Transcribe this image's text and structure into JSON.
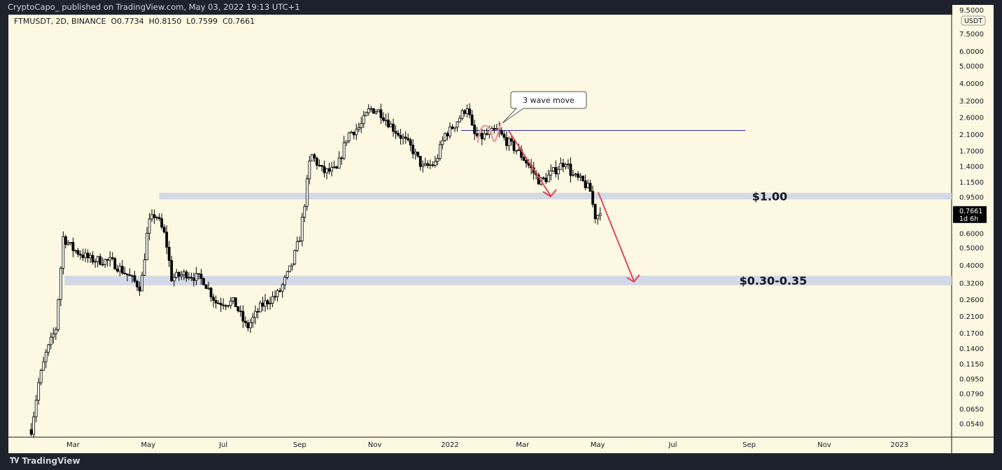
{
  "header": {
    "published": "CryptoCapo_ published on TradingView.com, May 03, 2022 19:13 UTC+1",
    "symbol_line": "FTMUSDT, 2D, BINANCE",
    "open": "O0.7734",
    "high": "H0.8150",
    "low": "L0.7599",
    "close": "C0.7661"
  },
  "footer": {
    "brand": "TradingView",
    "logo_icon": "tradingview-logo-icon"
  },
  "colors": {
    "background": "#fdf8e1",
    "frame": "#1e222d",
    "zone": "#d3d9e6",
    "arrow": "#e0475b",
    "level_line": "#2a2aa0",
    "candle": "#000000"
  },
  "chart_data": {
    "type": "candlestick",
    "symbol": "FTMUSDT",
    "interval": "2D",
    "exchange": "BINANCE",
    "y_scale": "log",
    "y_unit": "USDT",
    "ylim": [
      0.05,
      9.5
    ],
    "y_ticks": [
      "9.5000",
      "7.5000",
      "6.0000",
      "5.0000",
      "4.0000",
      "3.2000",
      "2.6000",
      "2.1000",
      "1.7000",
      "1.4000",
      "1.1500",
      "0.9500",
      "0.6000",
      "0.5000",
      "0.4000",
      "0.3200",
      "0.2600",
      "0.2100",
      "0.1700",
      "0.1400",
      "0.1150",
      "0.0950",
      "0.0790",
      "0.0650",
      "0.0540"
    ],
    "x_ticks": [
      {
        "label": "Mar",
        "date": "2021-03-01"
      },
      {
        "label": "May",
        "date": "2021-05-01"
      },
      {
        "label": "Jul",
        "date": "2021-07-01"
      },
      {
        "label": "Sep",
        "date": "2021-09-01"
      },
      {
        "label": "Nov",
        "date": "2021-11-01"
      },
      {
        "label": "2022",
        "date": "2022-01-01"
      },
      {
        "label": "Mar",
        "date": "2022-03-01"
      },
      {
        "label": "May",
        "date": "2022-05-01"
      },
      {
        "label": "Jul",
        "date": "2022-07-01"
      },
      {
        "label": "Sep",
        "date": "2022-09-01"
      },
      {
        "label": "Nov",
        "date": "2022-11-01"
      },
      {
        "label": "2023",
        "date": "2023-01-01"
      }
    ],
    "last_price": {
      "value": "0.7661",
      "countdown": "1d 6h"
    },
    "approx_close_path": [
      [
        "2021-01-26",
        0.05
      ],
      [
        "2021-02-01",
        0.09
      ],
      [
        "2021-02-07",
        0.13
      ],
      [
        "2021-02-15",
        0.18
      ],
      [
        "2021-02-21",
        0.57
      ],
      [
        "2021-03-01",
        0.49
      ],
      [
        "2021-03-15",
        0.43
      ],
      [
        "2021-04-01",
        0.42
      ],
      [
        "2021-04-15",
        0.35
      ],
      [
        "2021-04-25",
        0.3
      ],
      [
        "2021-05-01",
        0.67
      ],
      [
        "2021-05-07",
        0.77
      ],
      [
        "2021-05-15",
        0.57
      ],
      [
        "2021-05-20",
        0.34
      ],
      [
        "2021-06-01",
        0.36
      ],
      [
        "2021-06-15",
        0.33
      ],
      [
        "2021-06-25",
        0.25
      ],
      [
        "2021-07-10",
        0.25
      ],
      [
        "2021-07-20",
        0.18
      ],
      [
        "2021-08-01",
        0.24
      ],
      [
        "2021-08-15",
        0.28
      ],
      [
        "2021-08-25",
        0.39
      ],
      [
        "2021-09-01",
        0.57
      ],
      [
        "2021-09-05",
        0.88
      ],
      [
        "2021-09-10",
        1.64
      ],
      [
        "2021-09-20",
        1.3
      ],
      [
        "2021-10-01",
        1.33
      ],
      [
        "2021-10-10",
        2.1
      ],
      [
        "2021-10-20",
        2.3
      ],
      [
        "2021-10-28",
        2.9
      ],
      [
        "2021-11-05",
        2.8
      ],
      [
        "2021-11-15",
        2.3
      ],
      [
        "2021-11-25",
        1.95
      ],
      [
        "2021-12-01",
        1.75
      ],
      [
        "2021-12-10",
        1.37
      ],
      [
        "2021-12-20",
        1.45
      ],
      [
        "2021-12-28",
        2.1
      ],
      [
        "2022-01-01",
        2.2
      ],
      [
        "2022-01-10",
        2.65
      ],
      [
        "2022-01-15",
        3.0
      ],
      [
        "2022-01-20",
        2.1
      ],
      [
        "2022-01-25",
        2.0
      ],
      [
        "2022-02-01",
        2.1
      ],
      [
        "2022-02-08",
        2.2
      ],
      [
        "2022-02-15",
        1.95
      ],
      [
        "2022-02-25",
        1.7
      ],
      [
        "2022-03-05",
        1.45
      ],
      [
        "2022-03-15",
        1.15
      ],
      [
        "2022-03-20",
        1.2
      ],
      [
        "2022-03-30",
        1.38
      ],
      [
        "2022-04-05",
        1.5
      ],
      [
        "2022-04-10",
        1.25
      ],
      [
        "2022-04-20",
        1.13
      ],
      [
        "2022-04-26",
        1.0
      ],
      [
        "2022-04-28",
        0.74
      ],
      [
        "2022-05-03",
        0.7661
      ]
    ],
    "zones": [
      {
        "label": "$1.00",
        "low": 0.92,
        "high": 1.0,
        "from": "2021-05-10"
      },
      {
        "label": "$0.30-0.35",
        "low": 0.31,
        "high": 0.35,
        "from": "2021-02-22"
      }
    ],
    "level_line": {
      "price": 2.2,
      "from": "2022-01-10",
      "to": "2022-08-29"
    },
    "annotation": "3 wave move"
  }
}
